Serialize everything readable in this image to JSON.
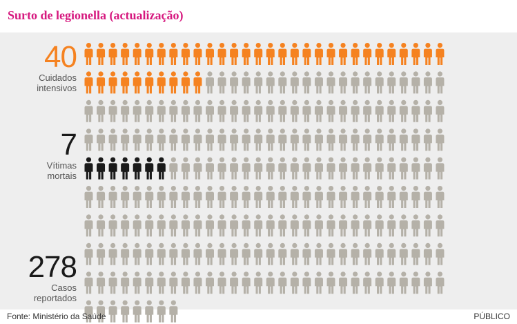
{
  "title": "Surto de legionella (actualização)",
  "source": "Fonte: Ministério da Saúde",
  "brand": "PÚBLICO",
  "colors": {
    "title": "#d6197f",
    "intensive_care": "#f58220",
    "deaths": "#1a1a1a",
    "reported": "#b5b1a8",
    "panel": "#eeeeee"
  },
  "chart_data": {
    "type": "pictogram",
    "title": "Surto de legionella (actualização)",
    "unit": "1 ícone = 1 pessoa",
    "series": [
      {
        "name": "Cuidados intensivos",
        "value": 40,
        "color": "#f58220"
      },
      {
        "name": "Vítimas mortais",
        "value": 7,
        "color": "#1a1a1a"
      },
      {
        "name": "Casos reportados",
        "value": 278,
        "color": "#b5b1a8"
      }
    ]
  },
  "labels": {
    "intensive_care": {
      "number": "40",
      "text": [
        "Cuidados",
        "intensivos"
      ]
    },
    "deaths": {
      "number": "7",
      "text": [
        "Vítimas",
        "mortais"
      ]
    },
    "reported": {
      "number": "278",
      "text": [
        "Casos",
        "reportados"
      ]
    }
  }
}
